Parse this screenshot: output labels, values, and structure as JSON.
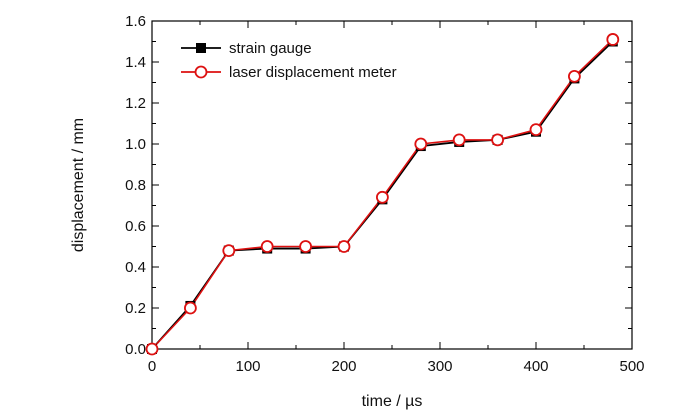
{
  "chart_data": {
    "type": "line",
    "xlabel": "time / µs",
    "ylabel": "displacement / mm",
    "xlim": [
      0,
      500
    ],
    "ylim": [
      0,
      1.6
    ],
    "xticks": [
      "0",
      "100",
      "200",
      "300",
      "400",
      "500"
    ],
    "yticks": [
      "0.0",
      "0.2",
      "0.4",
      "0.6",
      "0.8",
      "1.0",
      "1.2",
      "1.4",
      "1.6"
    ],
    "grid": false,
    "legend_position": "top-left",
    "series": [
      {
        "name": "strain gauge",
        "color": "#000000",
        "marker": "filled-square",
        "x": [
          0,
          40,
          80,
          120,
          160,
          200,
          240,
          280,
          320,
          360,
          400,
          440,
          480
        ],
        "y": [
          0.0,
          0.21,
          0.48,
          0.49,
          0.49,
          0.5,
          0.73,
          0.99,
          1.01,
          1.02,
          1.06,
          1.32,
          1.5
        ]
      },
      {
        "name": "laser displacement meter",
        "color": "#dd1111",
        "marker": "open-circle",
        "x": [
          0,
          40,
          80,
          120,
          160,
          200,
          240,
          280,
          320,
          360,
          400,
          440,
          480
        ],
        "y": [
          0.0,
          0.2,
          0.48,
          0.5,
          0.5,
          0.5,
          0.74,
          1.0,
          1.02,
          1.02,
          1.07,
          1.33,
          1.51
        ]
      }
    ]
  }
}
